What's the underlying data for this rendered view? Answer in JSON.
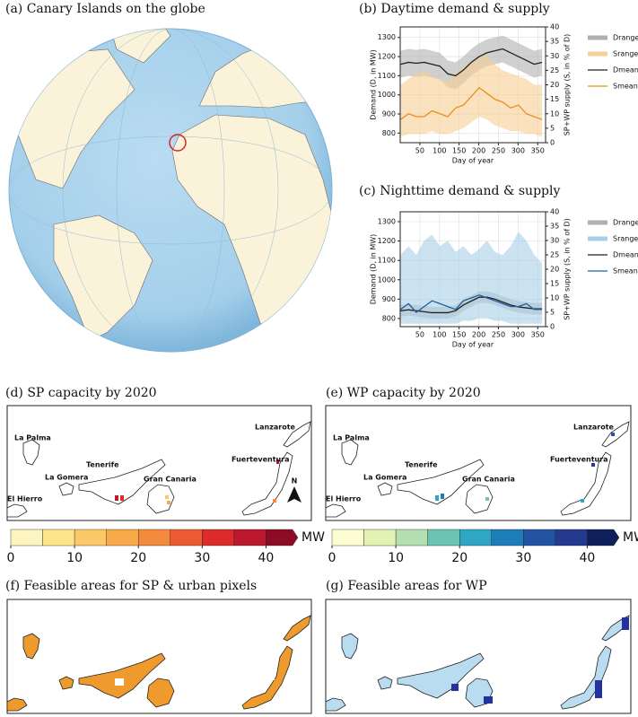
{
  "panels": {
    "a": "(a) Canary Islands on the globe",
    "d": "(d) SP capacity by 2020",
    "e": "(e) WP capacity by 2020",
    "f": "(f) Feasible areas for SP & urban pixels",
    "g": "(g) Feasible areas for WP"
  },
  "islands": [
    "La Palma",
    "El Hierro",
    "La Gomera",
    "Tenerife",
    "Gran Canaria",
    "Fuerteventura",
    "Lanzarote"
  ],
  "north": "N",
  "chart_data": [
    {
      "type": "line",
      "title": "(b) Daytime demand & supply",
      "xlabel": "Day of year",
      "ylabel": "Demand (D, in MW)",
      "y2label": "SP+WP supply (S, in % of D)",
      "x": [
        1,
        21,
        41,
        61,
        81,
        101,
        121,
        141,
        161,
        181,
        201,
        221,
        241,
        261,
        281,
        301,
        321,
        341,
        361
      ],
      "xlim": [
        0,
        370
      ],
      "xticks": [
        50,
        100,
        150,
        200,
        250,
        300,
        350
      ],
      "ylim": [
        750,
        1355
      ],
      "yticks": [
        800,
        900,
        1000,
        1100,
        1200,
        1300
      ],
      "y2lim": [
        0,
        40
      ],
      "y2ticks": [
        0,
        5,
        10,
        15,
        20,
        25,
        30,
        35,
        40
      ],
      "grid": true,
      "legend": "right",
      "series": [
        {
          "name": "Drange",
          "color": "#b0b0b0",
          "low": [
            1090,
            1100,
            1095,
            1100,
            1090,
            1080,
            1040,
            1030,
            1060,
            1100,
            1130,
            1150,
            1160,
            1170,
            1150,
            1130,
            1110,
            1090,
            1100
          ],
          "values": [
            1230,
            1240,
            1235,
            1240,
            1230,
            1220,
            1180,
            1170,
            1200,
            1240,
            1270,
            1290,
            1300,
            1310,
            1290,
            1270,
            1250,
            1230,
            1240
          ]
        },
        {
          "name": "Srange",
          "color": "#f7cf94",
          "axis": "y2",
          "low": [
            2,
            3,
            3,
            3,
            4,
            3,
            3,
            4,
            5,
            7,
            9,
            8,
            6,
            5,
            4,
            4,
            3,
            3,
            2
          ],
          "values": [
            20,
            22,
            24,
            25,
            23,
            22,
            21,
            24,
            26,
            28,
            30,
            30,
            27,
            25,
            24,
            23,
            22,
            20,
            20
          ]
        },
        {
          "name": "Dmean",
          "color": "#222222",
          "values": [
            1160,
            1170,
            1165,
            1170,
            1160,
            1150,
            1110,
            1100,
            1130,
            1170,
            1200,
            1220,
            1230,
            1240,
            1220,
            1200,
            1180,
            1160,
            1170
          ]
        },
        {
          "name": "Smean",
          "color": "#e8901a",
          "axis": "y2",
          "values": [
            8,
            10,
            9,
            9,
            11,
            10,
            9,
            12,
            13,
            16,
            19,
            17,
            15,
            14,
            12,
            13,
            10,
            9,
            8
          ]
        }
      ]
    },
    {
      "type": "line",
      "title": "(c) Nighttime demand & supply",
      "xlabel": "Day of year",
      "ylabel": "Demand (D, in MW)",
      "y2label": "SP+WP supply (S, in % of D)",
      "x": [
        1,
        21,
        41,
        61,
        81,
        101,
        121,
        141,
        161,
        181,
        201,
        221,
        241,
        261,
        281,
        301,
        321,
        341,
        361
      ],
      "xlim": [
        0,
        370
      ],
      "xticks": [
        50,
        100,
        150,
        200,
        250,
        300,
        350
      ],
      "ylim": [
        758,
        1351
      ],
      "yticks": [
        800,
        900,
        1000,
        1100,
        1200,
        1300
      ],
      "y2lim": [
        0,
        40
      ],
      "y2ticks": [
        0,
        5,
        10,
        15,
        20,
        25,
        30,
        35,
        40
      ],
      "grid": true,
      "legend": "right",
      "series": [
        {
          "name": "Drange",
          "color": "#b0b0b0",
          "low": [
            810,
            815,
            810,
            805,
            800,
            800,
            800,
            810,
            840,
            860,
            880,
            880,
            870,
            855,
            840,
            830,
            825,
            820,
            820
          ],
          "values": [
            870,
            875,
            870,
            865,
            860,
            860,
            860,
            870,
            900,
            920,
            940,
            940,
            930,
            915,
            900,
            890,
            885,
            880,
            880
          ]
        },
        {
          "name": "Srange",
          "color": "#a9cfe8",
          "axis": "y2",
          "low": [
            1,
            1,
            1,
            1,
            1,
            1,
            1,
            1,
            2,
            2,
            3,
            3,
            2,
            2,
            1,
            1,
            1,
            1,
            1
          ],
          "values": [
            25,
            28,
            25,
            30,
            32,
            28,
            30,
            26,
            28,
            25,
            27,
            30,
            26,
            25,
            28,
            33,
            30,
            25,
            22
          ]
        },
        {
          "name": "Dmean",
          "color": "#222222",
          "values": [
            840,
            845,
            840,
            835,
            830,
            830,
            830,
            840,
            870,
            890,
            910,
            910,
            900,
            885,
            870,
            860,
            855,
            850,
            850
          ]
        },
        {
          "name": "Smean",
          "color": "#1f5f9e",
          "axis": "y2",
          "values": [
            6,
            8,
            5,
            7,
            9,
            8,
            7,
            6,
            9,
            10,
            11,
            10,
            9,
            8,
            7,
            7,
            8,
            6,
            6
          ]
        }
      ]
    }
  ],
  "colorbars": [
    {
      "lim": [
        0,
        45
      ],
      "ticks": [
        0,
        10,
        20,
        30,
        40
      ],
      "unit": "MW",
      "colors": [
        "#fdf5c0",
        "#fde68a",
        "#fbc968",
        "#f8a94a",
        "#f48a3c",
        "#ec5a34",
        "#dc2b2a",
        "#bb1a2e",
        "#8c0c25"
      ]
    },
    {
      "lim": [
        0,
        45
      ],
      "ticks": [
        0,
        10,
        20,
        30,
        40
      ],
      "unit": "MW",
      "colors": [
        "#fcfdd0",
        "#e2f2b2",
        "#b3dfb1",
        "#6bc3b4",
        "#2fa6c4",
        "#1d7db8",
        "#2253a3",
        "#243a8f",
        "#0f1f5a"
      ]
    }
  ]
}
